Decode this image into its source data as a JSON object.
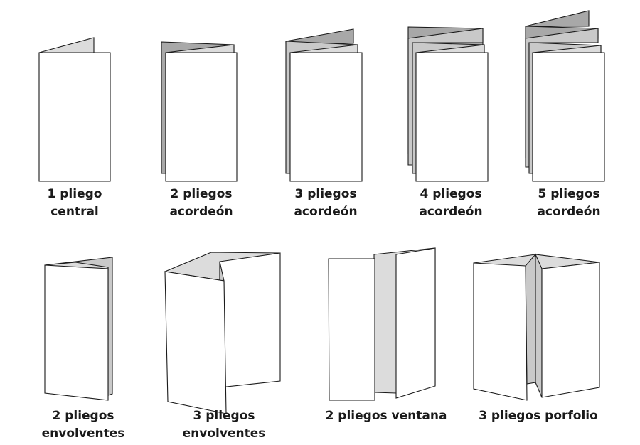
{
  "colors": {
    "paper": "#ffffff",
    "shade_light": "#dcdcdc",
    "shade_mid": "#c9c9c9",
    "shade_dark": "#a8a8a8",
    "stroke": "#1a1a1a",
    "text": "#1a1a1a"
  },
  "folds": [
    {
      "id": "fold-1-central",
      "label": [
        "1 pliego",
        "central"
      ]
    },
    {
      "id": "fold-2-acordeon",
      "label": [
        "2 pliegos",
        "acordeón"
      ]
    },
    {
      "id": "fold-3-acordeon",
      "label": [
        "3 pliegos",
        "acordeón"
      ]
    },
    {
      "id": "fold-4-acordeon",
      "label": [
        "4 pliegos",
        "acordeón"
      ]
    },
    {
      "id": "fold-5-acordeon",
      "label": [
        "5 pliegos",
        "acordeón"
      ]
    },
    {
      "id": "fold-2-envolventes",
      "label": [
        "2 pliegos",
        "envolventes"
      ]
    },
    {
      "id": "fold-3-envolventes",
      "label": [
        "3 pliegos",
        "envolventes"
      ]
    },
    {
      "id": "fold-2-ventana",
      "label": [
        "2 pliegos ventana"
      ]
    },
    {
      "id": "fold-3-porfolio",
      "label": [
        "3 pliegos porfolio"
      ]
    }
  ]
}
